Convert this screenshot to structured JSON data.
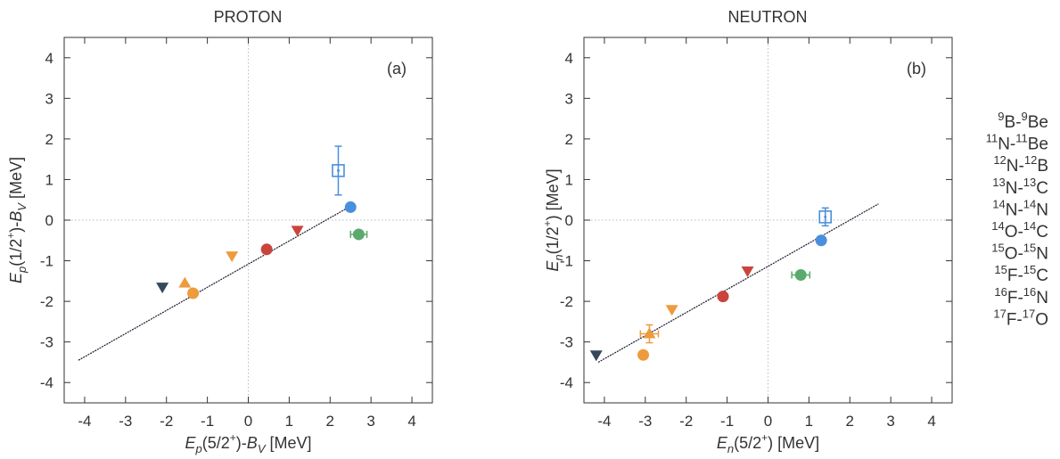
{
  "chart_data": [
    {
      "type": "scatter",
      "title": "PROTON",
      "panel_label": "(a)",
      "xlabel": {
        "main": "E",
        "sub": "p",
        "rest": "(5/2",
        "sup": "+",
        "after": ")-B",
        "sub2": "V",
        "unit": " [MeV]"
      },
      "ylabel": {
        "main": "E",
        "sub": "p",
        "rest": "(1/2",
        "sup": "+",
        "after": ")-B",
        "sub2": "V",
        "unit": " [MeV]"
      },
      "xlim": [
        -4.5,
        4.5
      ],
      "ylim": [
        -4.5,
        4.5
      ],
      "xticks": [
        -4,
        -3,
        -2,
        -1,
        0,
        1,
        2,
        3,
        4
      ],
      "yticks": [
        -4,
        -3,
        -2,
        -1,
        0,
        1,
        2,
        3,
        4
      ],
      "fit_line": {
        "x": [
          -4.15,
          2.6
        ],
        "y": [
          -3.45,
          0.4
        ]
      },
      "points": [
        {
          "marker": "open-square",
          "color": "#4a8fdc",
          "x": 2.2,
          "y": 1.22,
          "yerr": 0.6
        },
        {
          "marker": "circle",
          "color": "#4a8fdc",
          "x": 2.5,
          "y": 0.32
        },
        {
          "marker": "circle",
          "color": "#5aaa6e",
          "x": 2.7,
          "y": -0.35,
          "xerr": 0.2
        },
        {
          "marker": "down-triangle",
          "color": "#c9453c",
          "x": 1.2,
          "y": -0.25
        },
        {
          "marker": "circle",
          "color": "#c9453c",
          "x": 0.45,
          "y": -0.72
        },
        {
          "marker": "down-triangle",
          "color": "#ee9b3d",
          "x": -0.4,
          "y": -0.88
        },
        {
          "marker": "down-triangle",
          "color": "#36485a",
          "x": -2.1,
          "y": -1.65
        },
        {
          "marker": "up-triangle",
          "color": "#ee9b3d",
          "x": -1.55,
          "y": -1.55
        },
        {
          "marker": "circle",
          "color": "#ee9b3d",
          "x": -1.35,
          "y": -1.8
        }
      ]
    },
    {
      "type": "scatter",
      "title": "NEUTRON",
      "panel_label": "(b)",
      "xlabel": {
        "main": "E",
        "sub": "n",
        "rest": "(5/2",
        "sup": "+",
        "after": ")",
        "sub2": "",
        "unit": " [MeV]"
      },
      "ylabel": {
        "main": "E",
        "sub": "n",
        "rest": "(1/2",
        "sup": "+",
        "after": ")",
        "sub2": "",
        "unit": " [MeV]"
      },
      "xlim": [
        -4.5,
        4.5
      ],
      "ylim": [
        -4.5,
        4.5
      ],
      "xticks": [
        -4,
        -3,
        -2,
        -1,
        0,
        1,
        2,
        3,
        4
      ],
      "yticks": [
        -4,
        -3,
        -2,
        -1,
        0,
        1,
        2,
        3,
        4
      ],
      "fit_line": {
        "x": [
          -4.15,
          2.7
        ],
        "y": [
          -3.5,
          0.4
        ]
      },
      "points": [
        {
          "marker": "open-square",
          "color": "#4a8fdc",
          "x": 1.4,
          "y": 0.08,
          "yerr": 0.22
        },
        {
          "marker": "circle",
          "color": "#4a8fdc",
          "x": 1.3,
          "y": -0.5
        },
        {
          "marker": "down-triangle",
          "color": "#c9453c",
          "x": -0.5,
          "y": -1.25
        },
        {
          "marker": "circle",
          "color": "#5aaa6e",
          "x": 0.8,
          "y": -1.35,
          "xerr": 0.22
        },
        {
          "marker": "circle",
          "color": "#c9453c",
          "x": -1.1,
          "y": -1.88
        },
        {
          "marker": "down-triangle",
          "color": "#ee9b3d",
          "x": -2.35,
          "y": -2.2
        },
        {
          "marker": "up-triangle",
          "color": "#ee9b3d",
          "x": -2.9,
          "y": -2.8,
          "xerr": 0.22,
          "yerr": 0.22
        },
        {
          "marker": "circle",
          "color": "#ee9b3d",
          "x": -3.05,
          "y": -3.32
        },
        {
          "marker": "down-triangle",
          "color": "#36485a",
          "x": -4.2,
          "y": -3.32
        }
      ]
    }
  ],
  "legend": [
    {
      "a": "9",
      "an": "B",
      "b": "9",
      "bn": "Be"
    },
    {
      "a": "11",
      "an": "N",
      "b": "11",
      "bn": "Be"
    },
    {
      "a": "12",
      "an": "N",
      "b": "12",
      "bn": "B"
    },
    {
      "a": "13",
      "an": "N",
      "b": "13",
      "bn": "C"
    },
    {
      "a": "14",
      "an": "N",
      "b": "14",
      "bn": "N"
    },
    {
      "a": "14",
      "an": "O",
      "b": "14",
      "bn": "C"
    },
    {
      "a": "15",
      "an": "O",
      "b": "15",
      "bn": "N"
    },
    {
      "a": "15",
      "an": "F",
      "b": "15",
      "bn": "C"
    },
    {
      "a": "16",
      "an": "F",
      "b": "16",
      "bn": "N"
    },
    {
      "a": "17",
      "an": "F",
      "b": "17",
      "bn": "O"
    }
  ],
  "colors": {
    "axis": "#333333",
    "fit": "#1a1a2e",
    "zero_line": "#bbbbbb"
  }
}
